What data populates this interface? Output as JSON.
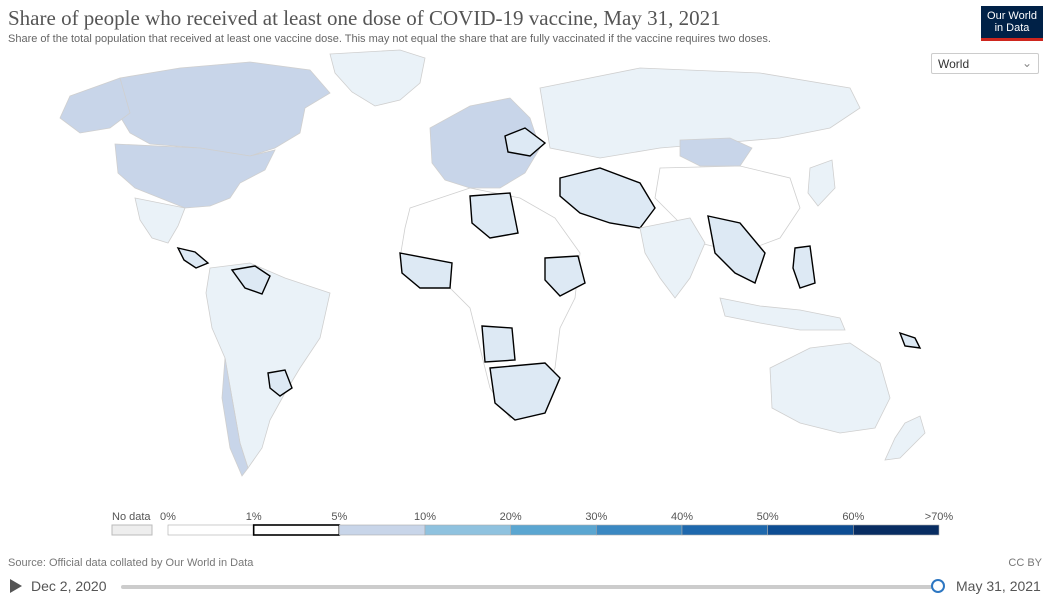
{
  "header": {
    "title": "Share of people who received at least one dose of COVID-19 vaccine, May 31, 2021",
    "subtitle": "Share of the total population that received at least one vaccine dose. This may not equal the share that are fully vaccinated if the vaccine requires two doses."
  },
  "logo": {
    "line1": "Our World",
    "line2": "in Data"
  },
  "region_select": {
    "value": "World"
  },
  "legend": {
    "no_data_label": "No data",
    "bins": [
      {
        "label": "0%",
        "color": "#ffffff"
      },
      {
        "label": "1%",
        "color": "#ffffff",
        "highlighted": true
      },
      {
        "label": "5%",
        "color": "#c8d5e9"
      },
      {
        "label": "10%",
        "color": "#8fc2df"
      },
      {
        "label": "20%",
        "color": "#5ba6d1"
      },
      {
        "label": "30%",
        "color": "#3a88c2"
      },
      {
        "label": "40%",
        "color": "#1e68ad"
      },
      {
        "label": "50%",
        "color": "#0d4d93"
      },
      {
        "label": "60%",
        "color": "#082d62"
      }
    ],
    "last_label": ">70%"
  },
  "footer": {
    "source": "Source: Official data collated by Our World in Data",
    "license": "CC BY"
  },
  "timeline": {
    "start": "Dec 2, 2020",
    "end": "May 31, 2021",
    "progress": 1.0
  },
  "colors": {
    "under1": "#ffffff",
    "bin1_5": "#dde9f4",
    "bin5_10": "#c8d5e9",
    "light": "#eaf2f8",
    "border": "#cfcfcf",
    "highlight": "#000000"
  }
}
